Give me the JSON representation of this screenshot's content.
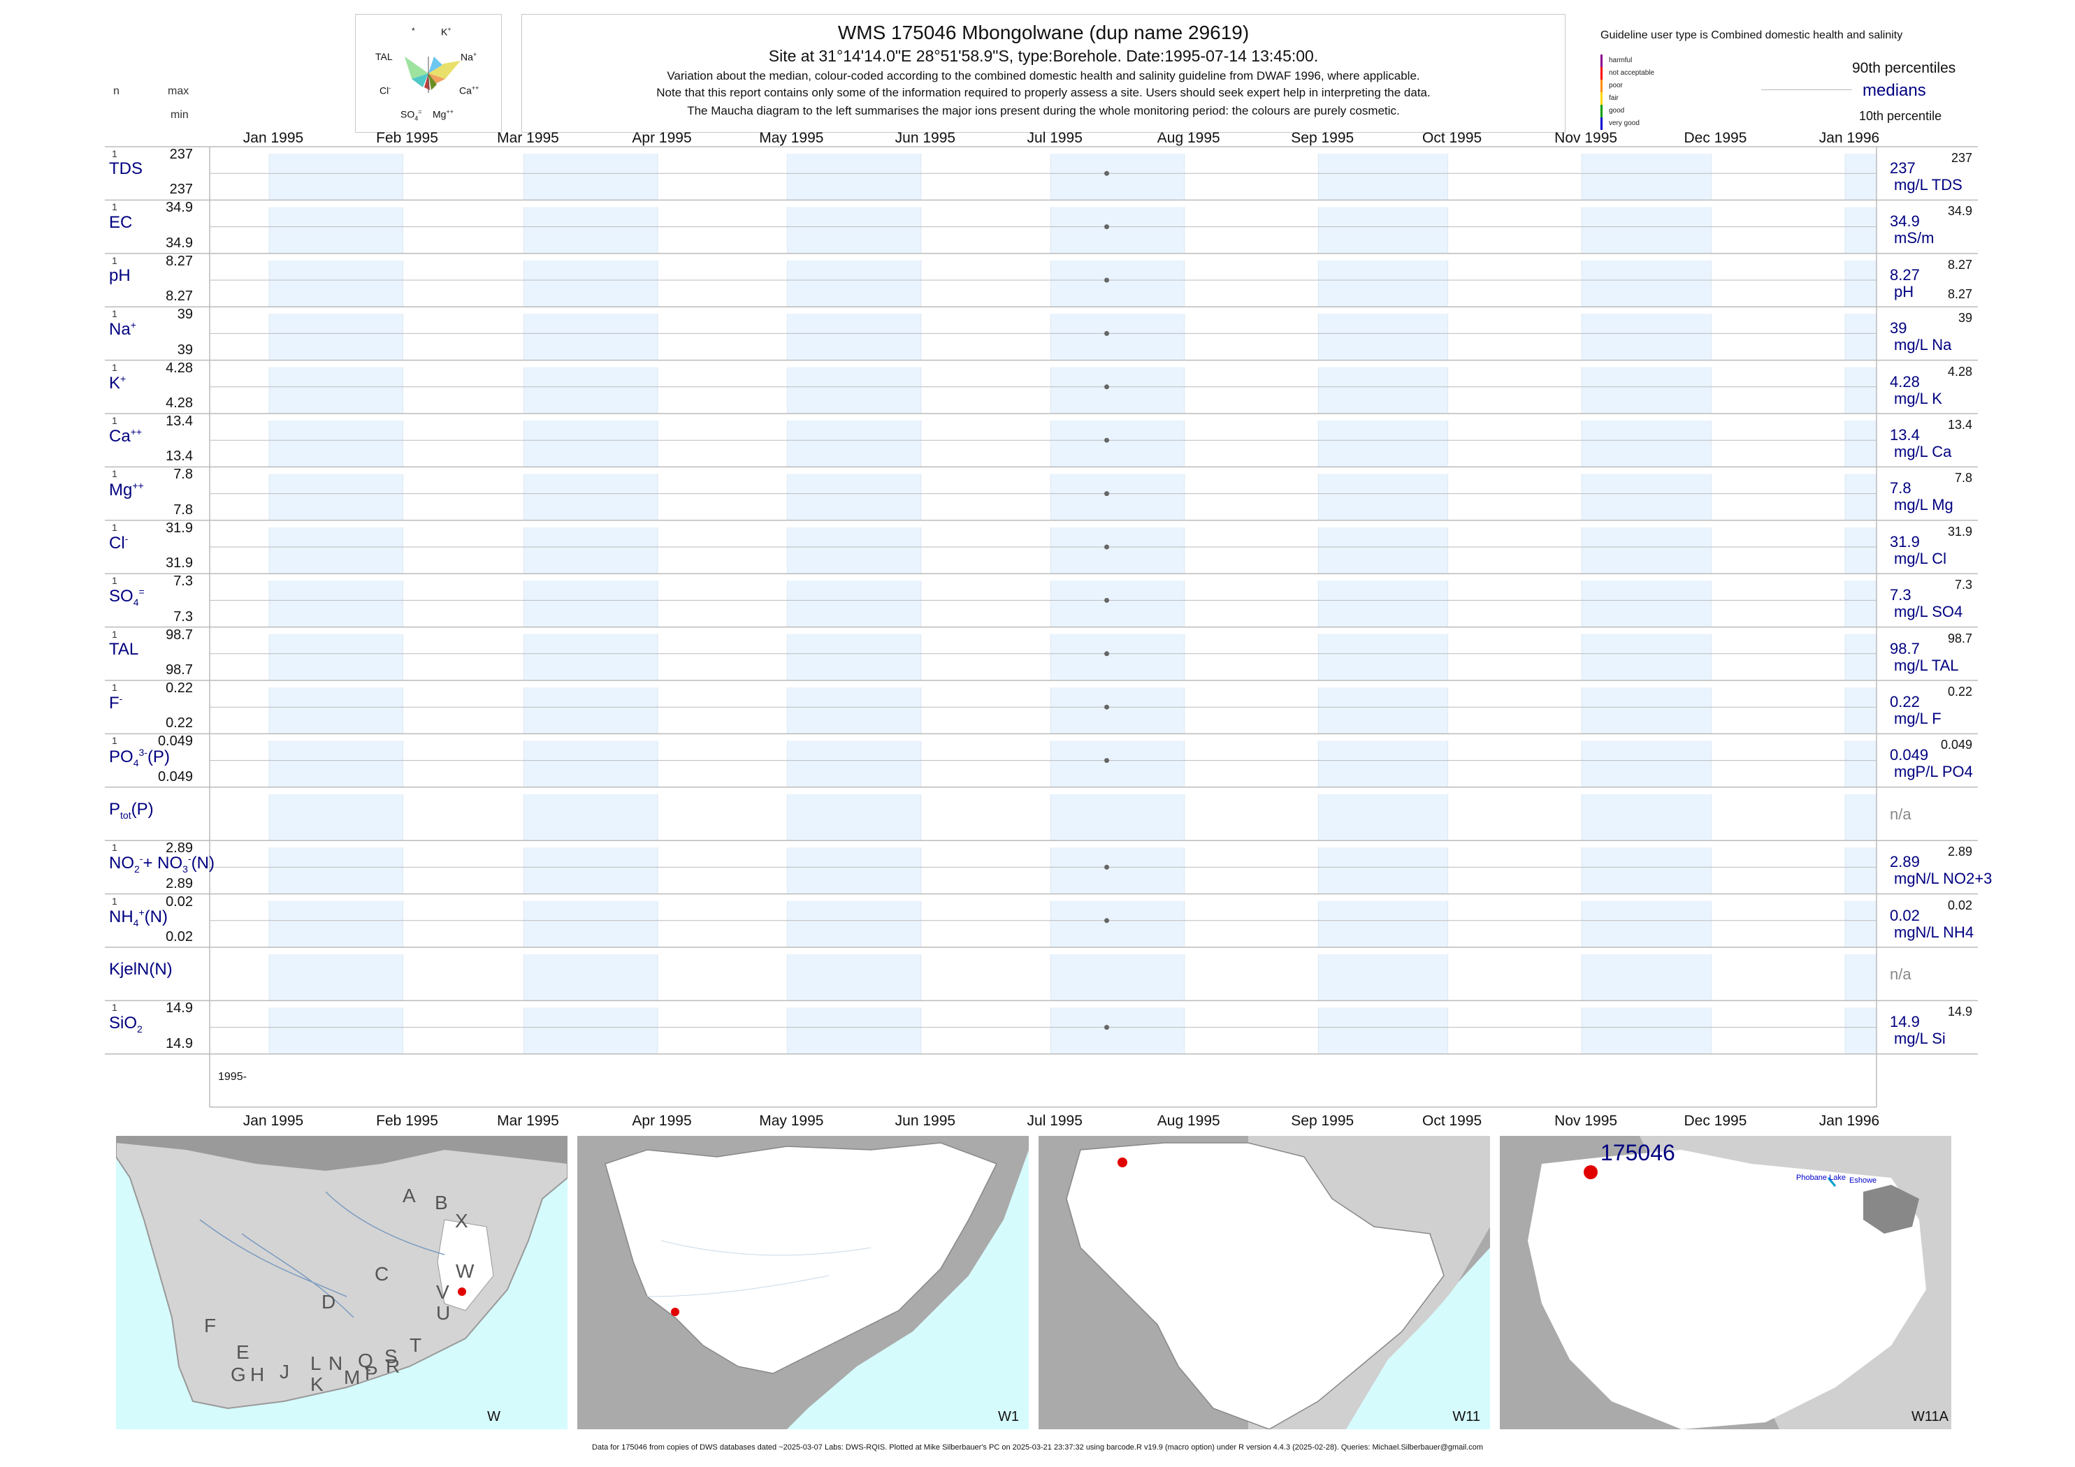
{
  "header": {
    "title": "WMS 175046  Mbongolwane (dup name 29619)",
    "subtitle": "Site at 31°14'14.0\"E 28°51'58.9\"S, type:Borehole. Date:1995-07-14 13:45:00.",
    "note1": "Variation about the median,  colour-coded according to the combined domestic health and salinity guideline from DWAF 1996, where applicable.",
    "note2": "Note that this report contains only some of the information required to properly assess a site. Users should seek expert help in interpreting the data.",
    "note3": "The Maucha diagram to the left summarises the major ions present during the whole monitoring period: the colours are purely cosmetic."
  },
  "left_header": {
    "n": "n",
    "max": "max",
    "min": "min"
  },
  "maucha": {
    "labels": {
      "star": "*",
      "k": "K",
      "k_sup": "+",
      "tal": "TAL",
      "na": "Na",
      "na_sup": "+",
      "cl": "Cl",
      "cl_sup": "-",
      "ca": "Ca",
      "ca_sup": "++",
      "so4": "SO",
      "so4_sub": "4",
      "so4_sup": "=",
      "mg": "Mg",
      "mg_sup": "++"
    }
  },
  "guideline_legend": {
    "title": "Guideline user type is Combined domestic health and salinity",
    "p90": "90th percentiles",
    "medians": "medians",
    "p10": "10th percentile",
    "categories": [
      {
        "label": "harmful",
        "color": "#8b008b"
      },
      {
        "label": "not acceptable",
        "color": "#ff0000"
      },
      {
        "label": "poor",
        "color": "#ff8c00"
      },
      {
        "label": "fair",
        "color": "#ffd700"
      },
      {
        "label": "good",
        "color": "#00a000"
      },
      {
        "label": "very good",
        "color": "#0000cd"
      }
    ]
  },
  "chart_data": {
    "type": "scatter",
    "x_range": [
      "1995-01-01",
      "1996-01-01"
    ],
    "x_tick_labels": [
      "Jan 1995",
      "Feb 1995",
      "Mar 1995",
      "Apr 1995",
      "May 1995",
      "Jun 1995",
      "Jul 1995",
      "Aug 1995",
      "Sep 1995",
      "Oct 1995",
      "Nov 1995",
      "Dec 1995",
      "Jan 1996"
    ],
    "year_label": "1995-",
    "sample_date": "1995-07-14",
    "series": [
      {
        "name": "TDS",
        "sup": "",
        "sub": "",
        "n": "1",
        "max": "237",
        "min": "237",
        "value": 237,
        "median": "237",
        "unit": "mg/L TDS",
        "p90": "237",
        "p10": ""
      },
      {
        "name": "EC",
        "sup": "",
        "sub": "",
        "n": "1",
        "max": "34.9",
        "min": "34.9",
        "value": 34.9,
        "median": "34.9",
        "unit": "mS/m",
        "p90": "34.9",
        "p10": ""
      },
      {
        "name": "pH",
        "sup": "",
        "sub": "",
        "n": "1",
        "max": "8.27",
        "min": "8.27",
        "value": 8.27,
        "median": "8.27",
        "unit": "pH",
        "p90": "8.27",
        "p10": "8.27"
      },
      {
        "name": "Na",
        "sup": "+",
        "sub": "",
        "n": "1",
        "max": "39",
        "min": "39",
        "value": 39,
        "median": "39",
        "unit": "mg/L Na",
        "p90": "39",
        "p10": ""
      },
      {
        "name": "K",
        "sup": "+",
        "sub": "",
        "n": "1",
        "max": "4.28",
        "min": "4.28",
        "value": 4.28,
        "median": "4.28",
        "unit": "mg/L K",
        "p90": "4.28",
        "p10": ""
      },
      {
        "name": "Ca",
        "sup": "++",
        "sub": "",
        "n": "1",
        "max": "13.4",
        "min": "13.4",
        "value": 13.4,
        "median": "13.4",
        "unit": "mg/L Ca",
        "p90": "13.4",
        "p10": ""
      },
      {
        "name": "Mg",
        "sup": "++",
        "sub": "",
        "n": "1",
        "max": "7.8",
        "min": "7.8",
        "value": 7.8,
        "median": "7.8",
        "unit": "mg/L Mg",
        "p90": "7.8",
        "p10": ""
      },
      {
        "name": "Cl",
        "sup": "-",
        "sub": "",
        "n": "1",
        "max": "31.9",
        "min": "31.9",
        "value": 31.9,
        "median": "31.9",
        "unit": "mg/L Cl",
        "p90": "31.9",
        "p10": ""
      },
      {
        "name": "SO",
        "sup": "=",
        "sub": "4",
        "n": "1",
        "max": "7.3",
        "min": "7.3",
        "value": 7.3,
        "median": "7.3",
        "unit": "mg/L SO4",
        "p90": "7.3",
        "p10": ""
      },
      {
        "name": "TAL",
        "sup": "",
        "sub": "",
        "n": "1",
        "max": "98.7",
        "min": "98.7",
        "value": 98.7,
        "median": "98.7",
        "unit": "mg/L TAL",
        "p90": "98.7",
        "p10": ""
      },
      {
        "name": "F",
        "sup": "-",
        "sub": "",
        "n": "1",
        "max": "0.22",
        "min": "0.22",
        "value": 0.22,
        "median": "0.22",
        "unit": "mg/L F",
        "p90": "0.22",
        "p10": ""
      },
      {
        "name": "PO",
        "sup": "3-",
        "sub": "4",
        "suffix": "(P)",
        "n": "1",
        "max": "0.049",
        "min": "0.049",
        "value": 0.049,
        "median": "0.049",
        "unit": "mgP/L PO4",
        "p90": "0.049",
        "p10": ""
      },
      {
        "name": "P",
        "sup": "",
        "sub": "tot",
        "suffix": "(P)",
        "n": "",
        "max": "",
        "min": "",
        "value": null,
        "median": "n/a",
        "unit": "",
        "p90": "",
        "p10": ""
      },
      {
        "name": "NO",
        "sup": "-",
        "sub": "2",
        "suffix": "+ NO",
        "sup2": "-",
        "sub2": "3",
        "suffix2": "(N)",
        "n": "1",
        "max": "2.89",
        "min": "2.89",
        "value": 2.89,
        "median": "2.89",
        "unit": "mgN/L NO2+3",
        "p90": "2.89",
        "p10": ""
      },
      {
        "name": "NH",
        "sup": "+",
        "sub": "4",
        "suffix": "(N)",
        "n": "1",
        "max": "0.02",
        "min": "0.02",
        "value": 0.02,
        "median": "0.02",
        "unit": "mgN/L NH4",
        "p90": "0.02",
        "p10": ""
      },
      {
        "name": "KjelN(N)",
        "sup": "",
        "sub": "",
        "n": "",
        "max": "",
        "min": "",
        "value": null,
        "median": "n/a",
        "unit": "",
        "p90": "",
        "p10": ""
      },
      {
        "name": "SiO",
        "sup": "",
        "sub": "2",
        "n": "1",
        "max": "14.9",
        "min": "14.9",
        "value": 14.9,
        "median": "14.9",
        "unit": "mg/L Si",
        "p90": "14.9",
        "p10": ""
      }
    ]
  },
  "maps": [
    {
      "label": "W",
      "letters": [
        "A",
        "B",
        "X",
        "W",
        "C",
        "V",
        "D",
        "U",
        "F",
        "T",
        "E",
        "S",
        "G",
        "H",
        "J",
        "L",
        "N",
        "Q",
        "R",
        "K",
        "M",
        "P"
      ]
    },
    {
      "label": "W1"
    },
    {
      "label": "W11"
    },
    {
      "label": "W11A",
      "site_label": "175046",
      "place1": "Phobane Lake",
      "place2": "Eshowe"
    }
  ],
  "footer": "Data for 175046 from copies of DWS databases dated ~2025-03-07 Labs: DWS-RQIS. Plotted at Mike Silberbauer's PC on 2025-03-21 23:37:32 using barcode.R v19.9 (macro option) under R version 4.4.3 (2025-02-28). Queries: Michael.Silberbauer@gmail.com"
}
